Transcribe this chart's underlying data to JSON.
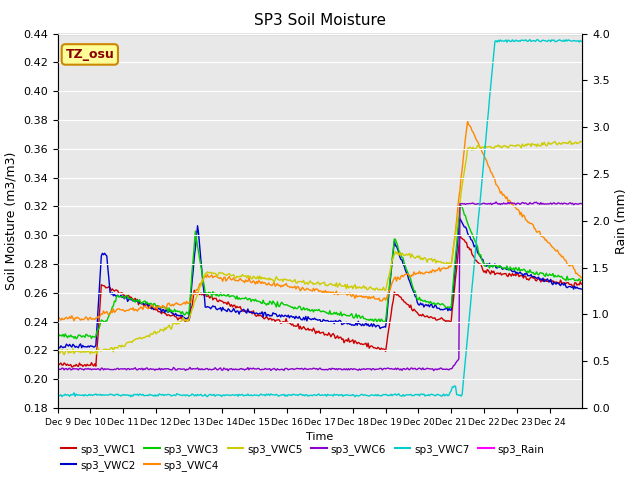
{
  "title": "SP3 Soil Moisture",
  "ylabel_left": "Soil Moisture (m3/m3)",
  "ylabel_right": "Rain (mm)",
  "xlabel": "Time",
  "ylim_left": [
    0.18,
    0.44
  ],
  "ylim_right": [
    0.0,
    4.0
  ],
  "annotation_text": "TZ_osu",
  "annotation_color": "#8b0000",
  "annotation_bg": "#ffff99",
  "annotation_border": "#cc8800",
  "bg_color": "#e8e8e8",
  "legend": [
    {
      "label": "sp3_VWC1",
      "color": "#cc0000"
    },
    {
      "label": "sp3_VWC2",
      "color": "#0000cc"
    },
    {
      "label": "sp3_VWC3",
      "color": "#00cc00"
    },
    {
      "label": "sp3_VWC4",
      "color": "#ff8800"
    },
    {
      "label": "sp3_VWC5",
      "color": "#cccc00"
    },
    {
      "label": "sp3_VWC6",
      "color": "#8800cc"
    },
    {
      "label": "sp3_VWC7",
      "color": "#00cccc"
    },
    {
      "label": "sp3_Rain",
      "color": "#ff00ff"
    }
  ],
  "n_points": 480,
  "xtick_labels": [
    "Dec 9",
    "Dec 10",
    "Dec 11",
    "Dec 12",
    "Dec 13",
    "Dec 14",
    "Dec 15",
    "Dec 16",
    "Dec 17",
    "Dec 18",
    "Dec 19",
    "Dec 20",
    "Dec 21",
    "Dec 22",
    "Dec 23",
    "Dec 24"
  ],
  "yticks_left": [
    0.18,
    0.2,
    0.22,
    0.24,
    0.26,
    0.28,
    0.3,
    0.32,
    0.34,
    0.36,
    0.38,
    0.4,
    0.42,
    0.44
  ],
  "yticks_right": [
    0.0,
    0.5,
    1.0,
    1.5,
    2.0,
    2.5,
    3.0,
    3.5,
    4.0
  ]
}
